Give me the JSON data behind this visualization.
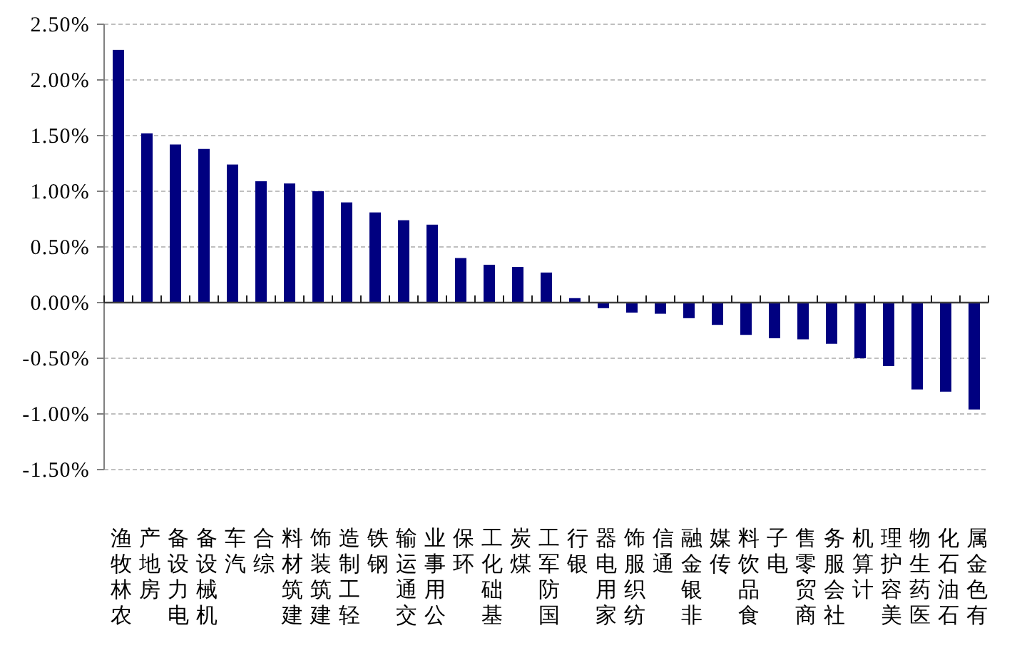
{
  "chart_data": {
    "type": "bar",
    "categories": [
      "农林牧渔",
      "房地产",
      "电力设备",
      "机械设备",
      "汽车",
      "综合",
      "建筑材料",
      "建筑装饰",
      "轻工制造",
      "钢铁",
      "交通运输",
      "公用事业",
      "环保",
      "基础化工",
      "煤炭",
      "国防军工",
      "银行",
      "家用电器",
      "纺织服饰",
      "通信",
      "非银金融",
      "传媒",
      "食品饮料",
      "电子",
      "商贸零售",
      "社会服务",
      "计算机",
      "美容护理",
      "医药生物",
      "石油石化",
      "有色金属"
    ],
    "values": [
      2.27,
      1.52,
      1.42,
      1.38,
      1.24,
      1.09,
      1.07,
      1.0,
      0.9,
      0.81,
      0.74,
      0.7,
      0.4,
      0.34,
      0.32,
      0.27,
      0.04,
      -0.05,
      -0.09,
      -0.1,
      -0.14,
      -0.2,
      -0.29,
      -0.32,
      -0.33,
      -0.37,
      -0.5,
      -0.57,
      -0.78,
      -0.8,
      -0.96
    ],
    "color": "#000080",
    "ylim": [
      -1.5,
      2.5
    ],
    "yticks": [
      {
        "value": 2.5,
        "label": "2.50%"
      },
      {
        "value": 2.0,
        "label": "2.00%"
      },
      {
        "value": 1.5,
        "label": "1.50%"
      },
      {
        "value": 1.0,
        "label": "1.00%"
      },
      {
        "value": 0.5,
        "label": "0.50%"
      },
      {
        "value": 0,
        "label": "0.00%"
      },
      {
        "value": -0.5,
        "label": "-0.50%"
      },
      {
        "value": -1.0,
        "label": "-1.00%"
      },
      {
        "value": -1.5,
        "label": "-1.50%"
      }
    ],
    "grid": "y"
  }
}
